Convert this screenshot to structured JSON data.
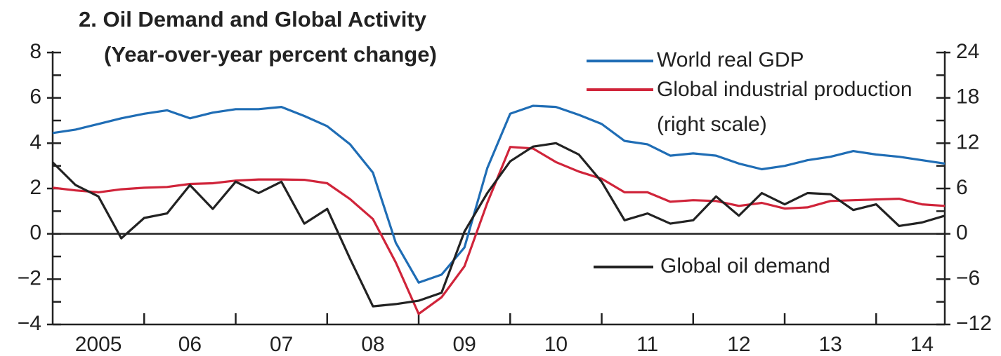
{
  "chart_data": {
    "type": "line",
    "title": "2. Oil Demand and Global Activity",
    "subtitle": "(Year-over-year percent change)",
    "x": [
      2005,
      2005.25,
      2005.5,
      2005.75,
      2006,
      2006.25,
      2006.5,
      2006.75,
      2007,
      2007.25,
      2007.5,
      2007.75,
      2008,
      2008.25,
      2008.5,
      2008.75,
      2009,
      2009.25,
      2009.5,
      2009.75,
      2010,
      2010.25,
      2010.5,
      2010.75,
      2011,
      2011.25,
      2011.5,
      2011.75,
      2012,
      2012.25,
      2012.5,
      2012.75,
      2013,
      2013.25,
      2013.5,
      2013.75,
      2014,
      2014.25,
      2014.5,
      2014.75
    ],
    "xlim": [
      2005,
      2014.75
    ],
    "xticks": [
      {
        "value": 2005.5,
        "label": "2005"
      },
      {
        "value": 2006.5,
        "label": "06"
      },
      {
        "value": 2007.5,
        "label": "07"
      },
      {
        "value": 2008.5,
        "label": "08"
      },
      {
        "value": 2009.5,
        "label": "09"
      },
      {
        "value": 2010.5,
        "label": "10"
      },
      {
        "value": 2011.5,
        "label": "11"
      },
      {
        "value": 2012.5,
        "label": "12"
      },
      {
        "value": 2013.5,
        "label": "13"
      },
      {
        "value": 2014.5,
        "label": "14"
      }
    ],
    "ylim": [
      -4,
      8
    ],
    "yticks": [
      {
        "value": -4,
        "label": "−4"
      },
      {
        "value": -2,
        "label": "−2"
      },
      0,
      2,
      4,
      6,
      8
    ],
    "y2lim": [
      -12,
      24
    ],
    "y2ticks": [
      {
        "value": -12,
        "label": "−12"
      },
      {
        "value": -6,
        "label": "−6"
      },
      0,
      6,
      12,
      18,
      24
    ],
    "series": [
      {
        "name": "World real GDP",
        "color": "#1f6db5",
        "values": [
          4.45,
          4.6,
          4.85,
          5.1,
          5.3,
          5.45,
          5.1,
          5.35,
          5.5,
          5.5,
          5.6,
          5.2,
          4.75,
          3.95,
          2.7,
          -0.4,
          -2.15,
          -1.8,
          -0.6,
          2.9,
          5.3,
          5.65,
          5.6,
          5.25,
          4.85,
          4.1,
          3.95,
          3.45,
          3.55,
          3.45,
          3.1,
          2.85,
          3.0,
          3.25,
          3.4,
          3.65,
          3.5,
          3.4,
          3.25,
          3.1
        ]
      },
      {
        "name": "Global industrial production (right scale)",
        "color": "#d0243a",
        "axis": "y2",
        "values": [
          6.1,
          5.75,
          5.5,
          5.9,
          6.1,
          6.2,
          6.6,
          6.7,
          7.05,
          7.2,
          7.2,
          7.15,
          6.7,
          4.6,
          1.95,
          -3.8,
          -10.6,
          -8.4,
          -4.3,
          4.1,
          11.5,
          11.3,
          9.5,
          8.25,
          7.3,
          5.5,
          5.5,
          4.25,
          4.45,
          4.35,
          3.7,
          4.1,
          3.35,
          3.5,
          4.35,
          4.45,
          4.55,
          4.65,
          3.9,
          3.7
        ]
      },
      {
        "name": "Global oil demand",
        "color": "#222222",
        "values": [
          3.15,
          2.15,
          1.65,
          -0.2,
          0.7,
          0.9,
          2.15,
          1.1,
          2.3,
          1.8,
          2.3,
          0.45,
          1.1,
          -1.1,
          -3.2,
          -3.1,
          -2.95,
          -2.6,
          0.1,
          1.8,
          3.2,
          3.85,
          4.0,
          3.5,
          2.3,
          0.6,
          0.9,
          0.45,
          0.6,
          1.65,
          0.8,
          1.8,
          1.3,
          1.8,
          1.75,
          1.05,
          1.3,
          0.35,
          0.5,
          0.8
        ]
      }
    ]
  }
}
